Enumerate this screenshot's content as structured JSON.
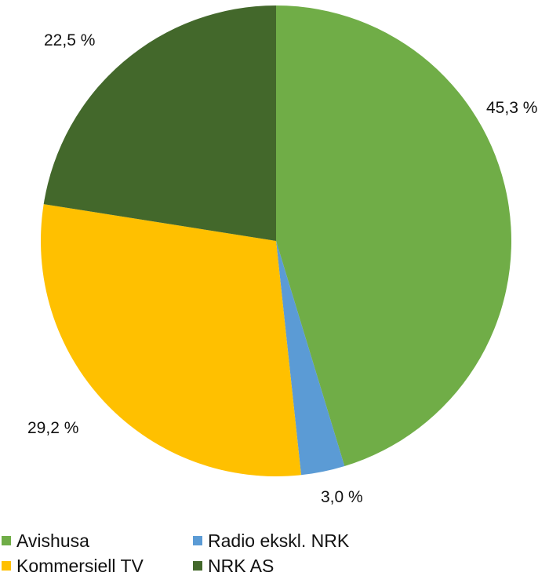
{
  "chart_data": {
    "type": "pie",
    "title": "",
    "start_angle_deg": 0,
    "direction": "clockwise",
    "slices": [
      {
        "label": "Avishusa",
        "value": 45.3,
        "value_label": "45,3 %",
        "color": "#70ad47"
      },
      {
        "label": "Radio ekskl. NRK",
        "value": 3.0,
        "value_label": "3,0 %",
        "color": "#5b9bd5"
      },
      {
        "label": "Kommersiell TV",
        "value": 29.2,
        "value_label": "29,2 %",
        "color": "#ffc000"
      },
      {
        "label": "NRK AS",
        "value": 22.5,
        "value_label": "22,5 %",
        "color": "#43682b"
      }
    ],
    "legend": {
      "placement": "bottom",
      "order": [
        "Avishusa",
        "Radio ekskl. NRK",
        "Kommersiell TV",
        "NRK AS"
      ]
    }
  }
}
